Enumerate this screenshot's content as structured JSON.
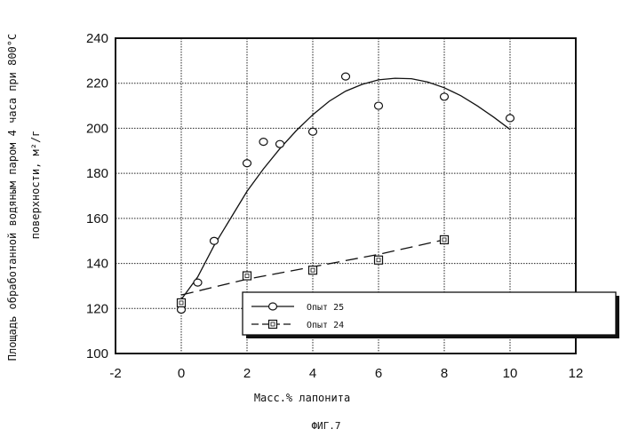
{
  "chart_data": {
    "type": "scatter",
    "figure_label": "ФИГ.7",
    "xlabel": "Масс.% лапонита",
    "ylabel_line1": "Площадь обработанной водяным паром 4 часа при 800°С",
    "ylabel_line2": "поверхности, м²/г",
    "xlim": [
      -2,
      12
    ],
    "ylim": [
      100,
      240
    ],
    "x_ticks": [
      -2,
      0,
      2,
      4,
      6,
      8,
      10,
      12
    ],
    "y_ticks": [
      100,
      120,
      140,
      160,
      180,
      200,
      220,
      240
    ],
    "grid": true,
    "legend_position": "lower-right",
    "series": [
      {
        "name": "Опыт 25",
        "marker": "circle",
        "line_style": "solid",
        "points": [
          {
            "x": 0,
            "y": 119.5
          },
          {
            "x": 0.5,
            "y": 131.5
          },
          {
            "x": 1,
            "y": 150
          },
          {
            "x": 2,
            "y": 184.5
          },
          {
            "x": 2.5,
            "y": 194
          },
          {
            "x": 3,
            "y": 193
          },
          {
            "x": 4,
            "y": 198.5
          },
          {
            "x": 5,
            "y": 223
          },
          {
            "x": 6,
            "y": 210
          },
          {
            "x": 8,
            "y": 214
          },
          {
            "x": 10,
            "y": 204.5
          }
        ],
        "fit": [
          {
            "x": 0,
            "y": 124
          },
          {
            "x": 0.5,
            "y": 134
          },
          {
            "x": 1,
            "y": 148
          },
          {
            "x": 1.5,
            "y": 160
          },
          {
            "x": 2,
            "y": 172
          },
          {
            "x": 2.5,
            "y": 182
          },
          {
            "x": 3,
            "y": 191
          },
          {
            "x": 3.5,
            "y": 199
          },
          {
            "x": 4,
            "y": 206
          },
          {
            "x": 4.5,
            "y": 212
          },
          {
            "x": 5,
            "y": 216.5
          },
          {
            "x": 5.5,
            "y": 219.5
          },
          {
            "x": 6,
            "y": 221.5
          },
          {
            "x": 6.5,
            "y": 222.2
          },
          {
            "x": 7,
            "y": 222
          },
          {
            "x": 7.5,
            "y": 220.5
          },
          {
            "x": 8,
            "y": 218
          },
          {
            "x": 8.5,
            "y": 214.5
          },
          {
            "x": 9,
            "y": 210
          },
          {
            "x": 9.5,
            "y": 205
          },
          {
            "x": 10,
            "y": 199.5
          }
        ]
      },
      {
        "name": "Опыт 24",
        "marker": "square",
        "line_style": "dashed",
        "points": [
          {
            "x": 0,
            "y": 122.5
          },
          {
            "x": 2,
            "y": 134.5
          },
          {
            "x": 4,
            "y": 137
          },
          {
            "x": 6,
            "y": 141.5
          },
          {
            "x": 8,
            "y": 150.5
          }
        ],
        "fit": [
          {
            "x": 0,
            "y": 126
          },
          {
            "x": 2,
            "y": 133
          },
          {
            "x": 4,
            "y": 138.5
          },
          {
            "x": 6,
            "y": 144
          },
          {
            "x": 8,
            "y": 150.5
          }
        ]
      }
    ]
  }
}
